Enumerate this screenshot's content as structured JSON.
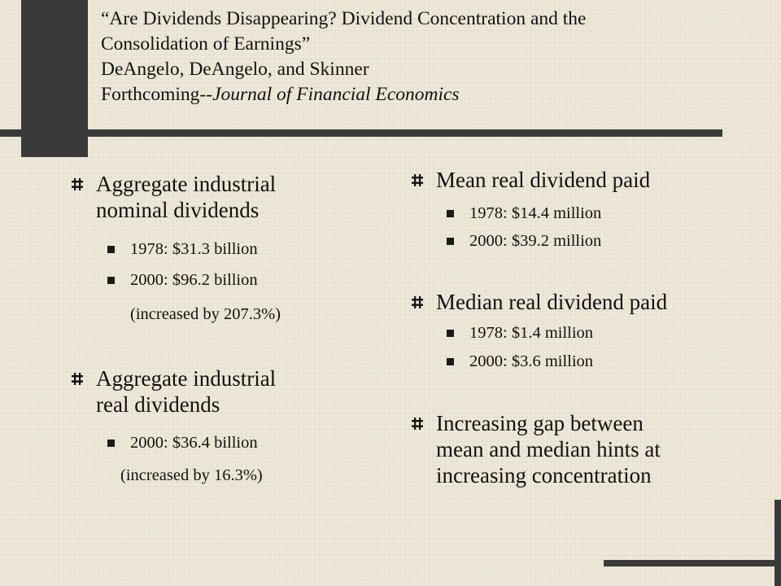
{
  "header": {
    "line1": "“Are Dividends Disappearing?  Dividend Concentration and the",
    "line2": "Consolidation of Earnings”",
    "line3": "DeAngelo, DeAngelo, and Skinner",
    "line4_prefix": "Forthcoming--",
    "line4_journal": "Journal of Financial Economics"
  },
  "left": {
    "nominal": {
      "title_line1": "Aggregate industrial",
      "title_line2": "nominal dividends",
      "items": [
        "1978:  $31.3 billion",
        "2000:  $96.2 billion"
      ],
      "note": "(increased by 207.3%)"
    },
    "real": {
      "title_line1": "Aggregate industrial",
      "title_line2": "real dividends",
      "items": [
        "2000:  $36.4 billion"
      ],
      "note": "(increased by 16.3%)"
    }
  },
  "right": {
    "mean": {
      "title": "Mean real dividend paid",
      "items": [
        "1978:  $14.4 million",
        "2000:  $39.2 million"
      ]
    },
    "median": {
      "title": "Median real dividend paid",
      "items": [
        "1978:  $1.4 million",
        "2000:  $3.6 million"
      ]
    },
    "gap": {
      "line1": "Increasing gap between",
      "line2": "mean and median hints at",
      "line3": "increasing concentration"
    }
  },
  "colors": {
    "background": "#ece6d6",
    "decor": "#3a3a3a",
    "text": "#111111"
  },
  "icons": {
    "level1_bullet": "hash-bullet-icon",
    "level2_bullet": "square-bullet-icon"
  }
}
